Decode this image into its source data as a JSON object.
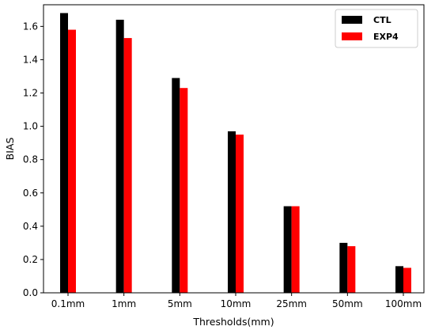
{
  "chart_data": {
    "type": "bar",
    "title": "",
    "xlabel": "Thresholds(mm)",
    "ylabel": "BIAS",
    "categories": [
      "0.1mm",
      "1mm",
      "5mm",
      "10mm",
      "25mm",
      "50mm",
      "100mm"
    ],
    "series": [
      {
        "name": "CTL",
        "color": "#000000",
        "values": [
          1.68,
          1.64,
          1.29,
          0.97,
          0.52,
          0.3,
          0.16
        ]
      },
      {
        "name": "EXP4",
        "color": "#ff0000",
        "values": [
          1.58,
          1.53,
          1.23,
          0.95,
          0.52,
          0.28,
          0.15
        ]
      }
    ],
    "ylim": [
      0,
      1.73
    ],
    "yticks": [
      "0.0",
      "0.2",
      "0.4",
      "0.6",
      "0.8",
      "1.0",
      "1.2",
      "1.4",
      "1.6"
    ],
    "grid": false,
    "legend_position": "top-right"
  }
}
